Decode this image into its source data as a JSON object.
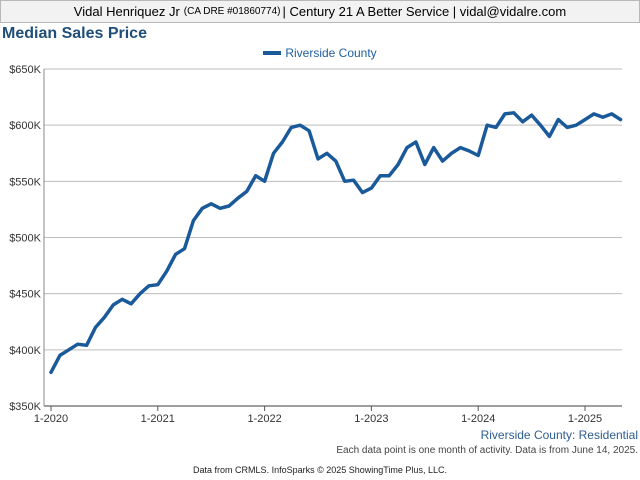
{
  "header": {
    "name": "Vidal Henriquez Jr",
    "license": "(CA DRE #01860774)",
    "rest": "| Century 21 A Better Service | vidal@vidalre.com"
  },
  "title": "Median Sales Price",
  "legend_label": "Riverside County",
  "footer": {
    "region": "Riverside County: Residential",
    "note": "Each data point is one month of activity. Data is from June 14, 2025.",
    "credit": "Data from CRMLS. InfoSparks © 2025 ShowingTime Plus, LLC."
  },
  "colors": {
    "line": "#1a5a9a",
    "grid": "#bdbdbd",
    "title": "#1f4e79"
  },
  "chart_data": {
    "type": "line",
    "title": "Median Sales Price",
    "xlabel": "",
    "ylabel": "",
    "ylim": [
      350000,
      650000
    ],
    "yticks": [
      350000,
      400000,
      450000,
      500000,
      550000,
      600000,
      650000
    ],
    "ytick_labels": [
      "$350K",
      "$400K",
      "$450K",
      "$500K",
      "$550K",
      "$600K",
      "$650K"
    ],
    "xticks": [
      "2020-01",
      "2021-01",
      "2022-01",
      "2023-01",
      "2024-01",
      "2025-01"
    ],
    "xtick_labels": [
      "1-2020",
      "1-2021",
      "1-2022",
      "1-2023",
      "1-2024",
      "1-2025"
    ],
    "grid": true,
    "legend": "top-center",
    "series": [
      {
        "name": "Riverside County",
        "x": [
          "2020-01",
          "2020-02",
          "2020-03",
          "2020-04",
          "2020-05",
          "2020-06",
          "2020-07",
          "2020-08",
          "2020-09",
          "2020-10",
          "2020-11",
          "2020-12",
          "2021-01",
          "2021-02",
          "2021-03",
          "2021-04",
          "2021-05",
          "2021-06",
          "2021-07",
          "2021-08",
          "2021-09",
          "2021-10",
          "2021-11",
          "2021-12",
          "2022-01",
          "2022-02",
          "2022-03",
          "2022-04",
          "2022-05",
          "2022-06",
          "2022-07",
          "2022-08",
          "2022-09",
          "2022-10",
          "2022-11",
          "2022-12",
          "2023-01",
          "2023-02",
          "2023-03",
          "2023-04",
          "2023-05",
          "2023-06",
          "2023-07",
          "2023-08",
          "2023-09",
          "2023-10",
          "2023-11",
          "2023-12",
          "2024-01",
          "2024-02",
          "2024-03",
          "2024-04",
          "2024-05",
          "2024-06",
          "2024-07",
          "2024-08",
          "2024-09",
          "2024-10",
          "2024-11",
          "2024-12",
          "2025-01",
          "2025-02",
          "2025-03",
          "2025-04",
          "2025-05"
        ],
        "values": [
          380000,
          395000,
          400000,
          405000,
          404000,
          420000,
          429000,
          440000,
          445000,
          441000,
          450000,
          457000,
          458000,
          470000,
          485000,
          490000,
          515000,
          526000,
          530000,
          526000,
          528000,
          535000,
          541000,
          555000,
          550000,
          575000,
          585000,
          598000,
          600000,
          595000,
          570000,
          575000,
          568000,
          550000,
          551000,
          540000,
          544000,
          555000,
          555000,
          565000,
          580000,
          585000,
          565000,
          580000,
          568000,
          575000,
          580000,
          577000,
          573000,
          600000,
          598000,
          610000,
          611000,
          603000,
          609000,
          600000,
          590000,
          605000,
          598000,
          600000,
          605000,
          610000,
          607000,
          610000,
          605000
        ]
      }
    ]
  }
}
